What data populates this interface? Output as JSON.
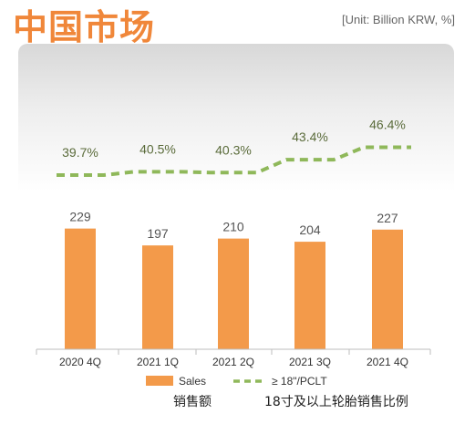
{
  "header": {
    "title": "中国市场",
    "unit": "[Unit: Billion KRW, %]"
  },
  "chart_data": {
    "type": "bar",
    "categories": [
      "2020 4Q",
      "2021 1Q",
      "2021 2Q",
      "2021 3Q",
      "2021 4Q"
    ],
    "series": [
      {
        "name": "Sales",
        "type": "bar",
        "values": [
          229,
          197,
          210,
          204,
          227
        ],
        "labels": [
          "229",
          "197",
          "210",
          "204",
          "227"
        ],
        "color": "#f39a4a"
      },
      {
        "name": "≥ 18\"/PCLT",
        "type": "line",
        "style": "dashed",
        "values": [
          39.7,
          40.5,
          40.3,
          43.4,
          46.4
        ],
        "labels": [
          "39.7%",
          "40.5%",
          "40.3%",
          "43.4%",
          "46.4%"
        ],
        "color": "#8fb85a"
      }
    ],
    "legend": {
      "position": "bottom"
    }
  },
  "annotations": {
    "sales_cn": "销售额",
    "ratio_cn": "18寸及以上轮胎销售比例"
  },
  "colors": {
    "title": "#f0873a",
    "bar": "#f39a4a",
    "line": "#8fb85a",
    "bar_label": "#555555",
    "line_label": "#5a6b3a"
  }
}
